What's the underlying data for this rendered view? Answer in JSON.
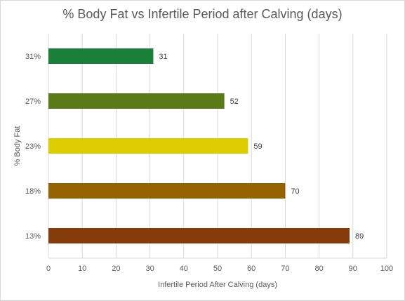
{
  "chart_data": {
    "type": "bar",
    "orientation": "horizontal",
    "title": "% Body Fat vs Infertile Period after Calving (days)",
    "xlabel": "Infertile Period After Calving (days)",
    "ylabel": "% Body  Fat",
    "categories": [
      "31%",
      "27%",
      "23%",
      "18%",
      "13%"
    ],
    "values": [
      31,
      52,
      59,
      70,
      89
    ],
    "colors": [
      "#1a7f3a",
      "#5a7a1a",
      "#dccd00",
      "#946300",
      "#843c0c"
    ],
    "xlim": [
      0,
      100
    ],
    "xticks": [
      0,
      10,
      20,
      30,
      40,
      50,
      60,
      70,
      80,
      90,
      100
    ],
    "grid": "vertical",
    "data_labels": true
  }
}
